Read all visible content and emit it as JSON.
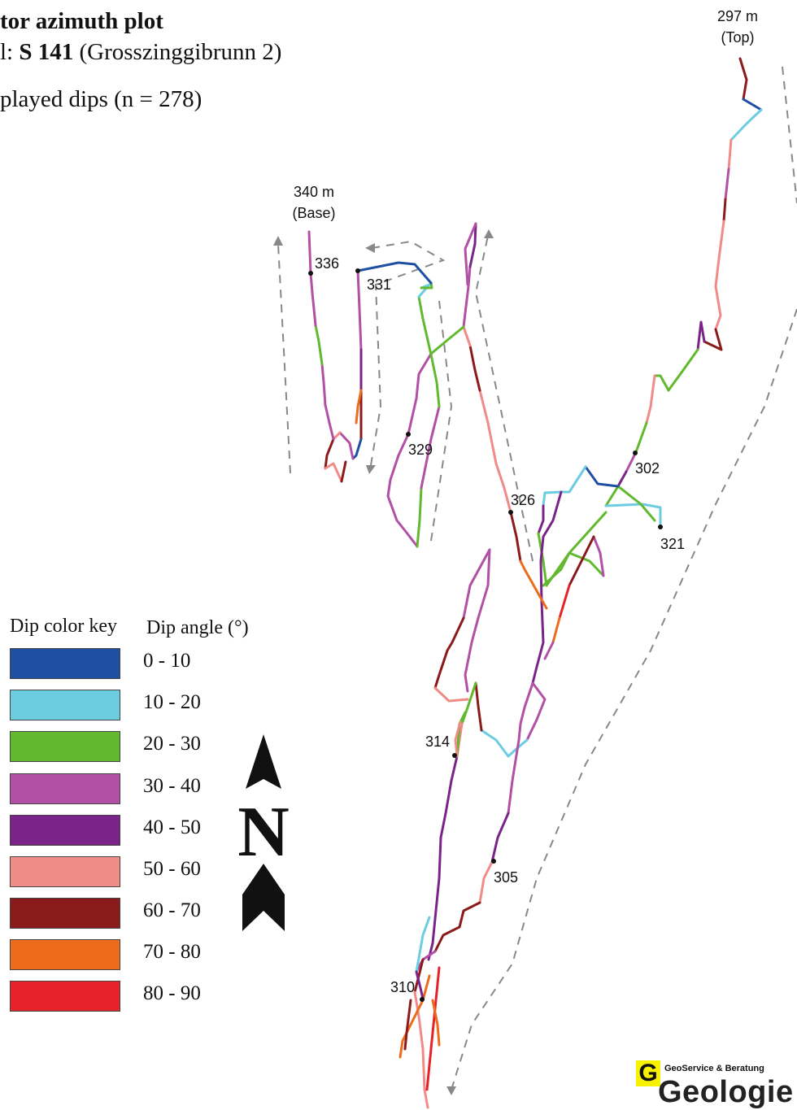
{
  "header": {
    "title": "tor azimuth plot",
    "well_prefix": "l:",
    "well_id": "S 141",
    "well_name": "(Grosszinggibrunn 2)",
    "dips_count": "played dips (n = 278)"
  },
  "legend": {
    "key_heading": "Dip color key",
    "angle_heading": "Dip angle (°)",
    "items": [
      {
        "range": "0 - 10",
        "color": "#1f4fa3"
      },
      {
        "range": "10 - 20",
        "color": "#6ccde0"
      },
      {
        "range": "20 - 30",
        "color": "#62b82f"
      },
      {
        "range": "30 - 40",
        "color": "#b150a4"
      },
      {
        "range": "40 - 50",
        "color": "#7a2489"
      },
      {
        "range": "50 - 60",
        "color": "#f08b87"
      },
      {
        "range": "60 - 70",
        "color": "#8b1a1a"
      },
      {
        "range": "70 - 80",
        "color": "#ec6b1d"
      },
      {
        "range": "80 - 90",
        "color": "#e52227"
      }
    ]
  },
  "north_arrow": {
    "letter": "N"
  },
  "markers": {
    "top": {
      "depth": "297 m",
      "label": "(Top)"
    },
    "base": {
      "depth": "340 m",
      "label": "(Base)"
    },
    "depths": [
      "302",
      "305",
      "310",
      "314",
      "321",
      "326",
      "329",
      "331",
      "336"
    ]
  },
  "logo": {
    "tagline": "GeoService & Beratung",
    "letter": "G",
    "word": "Geologie"
  }
}
